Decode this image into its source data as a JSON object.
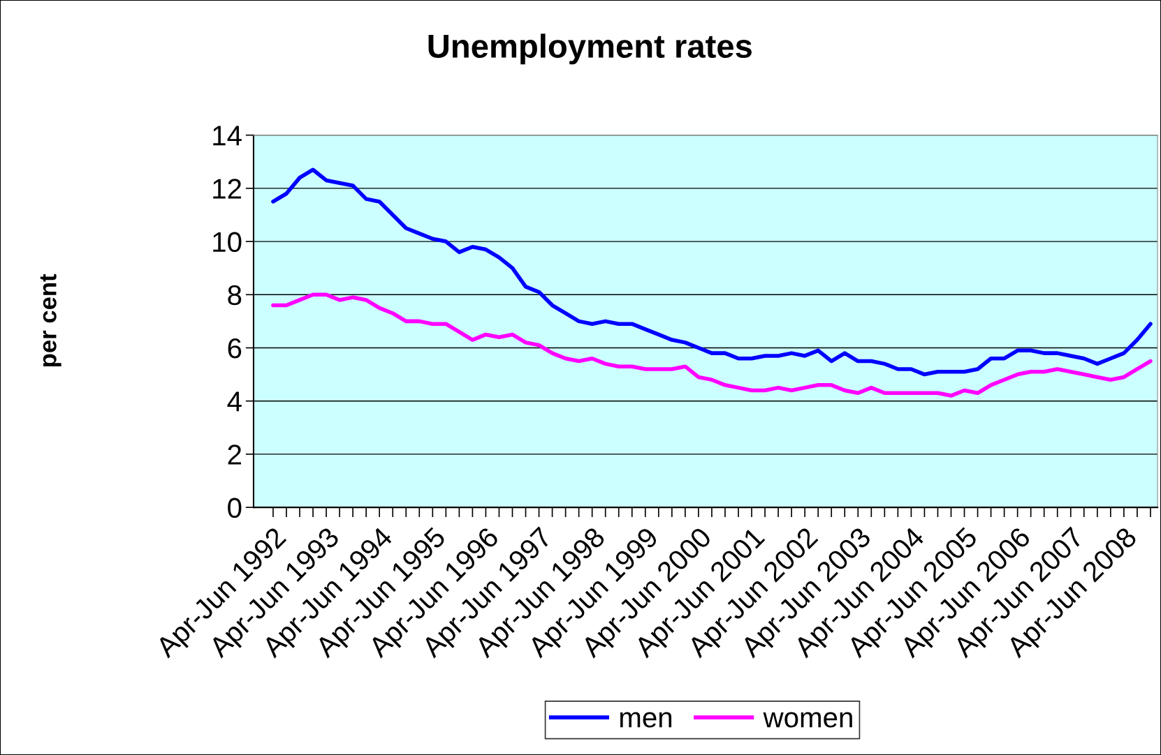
{
  "chart_data": {
    "type": "line",
    "title": "Unemployment rates",
    "ylabel": "per cent",
    "categories": [
      "Apr-Jun 1992",
      null,
      null,
      null,
      "Apr-Jun 1993",
      null,
      null,
      null,
      "Apr-Jun 1994",
      null,
      null,
      null,
      "Apr-Jun 1995",
      null,
      null,
      null,
      "Apr-Jun 1996",
      null,
      null,
      null,
      "Apr-Jun 1997",
      null,
      null,
      null,
      "Apr-Jun 1998",
      null,
      null,
      null,
      "Apr-Jun 1999",
      null,
      null,
      null,
      "Apr-Jun 2000",
      null,
      null,
      null,
      "Apr-Jun 2001",
      null,
      null,
      null,
      "Apr-Jun 2002",
      null,
      null,
      null,
      "Apr-Jun 2003",
      null,
      null,
      null,
      "Apr-Jun 2004",
      null,
      null,
      null,
      "Apr-Jun 2005",
      null,
      null,
      null,
      "Apr-Jun 2006",
      null,
      null,
      null,
      "Apr-Jun 2007",
      null,
      null,
      null,
      "Apr-Jun 2008",
      null,
      null
    ],
    "series": [
      {
        "name": "men",
        "color": "#0000ff",
        "values": [
          11.5,
          11.8,
          12.4,
          12.7,
          12.3,
          12.2,
          12.1,
          11.6,
          11.5,
          11.0,
          10.5,
          10.3,
          10.1,
          10.0,
          9.6,
          9.8,
          9.7,
          9.4,
          9.0,
          8.3,
          8.1,
          7.6,
          7.3,
          7.0,
          6.9,
          7.0,
          6.9,
          6.9,
          6.7,
          6.5,
          6.3,
          6.2,
          6.0,
          5.8,
          5.8,
          5.6,
          5.6,
          5.7,
          5.7,
          5.8,
          5.7,
          5.9,
          5.5,
          5.8,
          5.5,
          5.5,
          5.4,
          5.2,
          5.2,
          5.0,
          5.1,
          5.1,
          5.1,
          5.2,
          5.6,
          5.6,
          5.9,
          5.9,
          5.8,
          5.8,
          5.7,
          5.6,
          5.4,
          5.6,
          5.8,
          6.3,
          6.9
        ]
      },
      {
        "name": "women",
        "color": "#ff00ff",
        "values": [
          7.6,
          7.6,
          7.8,
          8.0,
          8.0,
          7.8,
          7.9,
          7.8,
          7.5,
          7.3,
          7.0,
          7.0,
          6.9,
          6.9,
          6.6,
          6.3,
          6.5,
          6.4,
          6.5,
          6.2,
          6.1,
          5.8,
          5.6,
          5.5,
          5.6,
          5.4,
          5.3,
          5.3,
          5.2,
          5.2,
          5.2,
          5.3,
          4.9,
          4.8,
          4.6,
          4.5,
          4.4,
          4.4,
          4.5,
          4.4,
          4.5,
          4.6,
          4.6,
          4.4,
          4.3,
          4.5,
          4.3,
          4.3,
          4.3,
          4.3,
          4.3,
          4.2,
          4.4,
          4.3,
          4.6,
          4.8,
          5.0,
          5.1,
          5.1,
          5.2,
          5.1,
          5.0,
          4.9,
          4.8,
          4.9,
          5.2,
          5.5
        ]
      }
    ],
    "ylim": [
      0,
      14
    ],
    "yticks": [
      0,
      2,
      4,
      6,
      8,
      10,
      12,
      14
    ],
    "grid": "y",
    "legend": "bottom",
    "marker": "none",
    "line_style": "solid"
  }
}
